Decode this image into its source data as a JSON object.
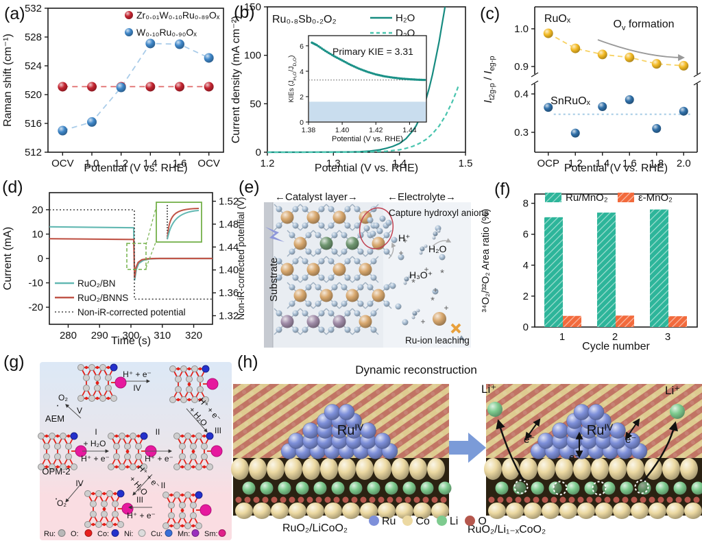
{
  "panels": {
    "a": {
      "tag": "(a)"
    },
    "b": {
      "tag": "(b)"
    },
    "c": {
      "tag": "(c)"
    },
    "d": {
      "tag": "(d)"
    },
    "e": {
      "tag": "(e)",
      "header_left": "←Catalyst layer→",
      "header_right": "←Electrolyte→",
      "substrate": "Substrate",
      "capture": "Capture hydroxyl anions",
      "h_plus": "H⁺",
      "h2o": "H₂O",
      "h3o": "H₃O⁺",
      "ru_leaching": "Ru-ion leaching",
      "colors": {
        "metal": "#d8a86e",
        "oxygen": "#a7bdd3",
        "doped_green": "#6f9670",
        "doped_purple": "#a08ca8",
        "substrate": "#c6cad1",
        "bg": "#e9edf2",
        "ellipse": "#c04050",
        "bolt": "#8a93d8",
        "leach_x": "#e8a03c"
      }
    },
    "f": {
      "tag": "(f)"
    },
    "g": {
      "tag": "(g)",
      "region_top": "AEM",
      "region_bottom": "OPM-2",
      "labels": {
        "hpe": "H⁺ + e⁻",
        "h2o": "+ H₂O",
        "o2": "O₂",
        "s1": "I",
        "s2": "II",
        "s3": "III",
        "s4": "IV",
        "s5": "V"
      },
      "legend": [
        {
          "label": "Ru:",
          "color": "#b8b8b8"
        },
        {
          "label": "O:",
          "color": "#e8201e"
        },
        {
          "label": "Co:",
          "color": "#2431cc"
        },
        {
          "label": "Ni:",
          "color": "#dcdcdc"
        },
        {
          "label": "Cu:",
          "color": "#3a6fd8"
        },
        {
          "label": "Mn:",
          "color": "#9b2fbe"
        },
        {
          "label": "Sm:",
          "color": "#e0218a"
        }
      ],
      "bg_top": "#dce8f6",
      "bg_bottom": "#fadde2"
    },
    "h": {
      "tag": "(h)",
      "title": "Dynamic reconstruction",
      "cluster_base": "Ru",
      "cluster_sup": "IV",
      "li_ion": "Li⁺",
      "electron": "e⁻",
      "left_formula": "RuO₂/LiCoO₂",
      "right_formula": "RuO₂/Li₁₋ₓCoO₂",
      "legend": [
        {
          "label": "Ru",
          "color": "#7e90da"
        },
        {
          "label": "Co",
          "color": "#ecd9a2"
        },
        {
          "label": "Li",
          "color": "#7ecb8f"
        },
        {
          "label": "O",
          "color": "#b5574d"
        }
      ],
      "colors": {
        "surface_yellow": "#decb90",
        "surface_red": "#c17464",
        "cluster_blue": "#7e90da",
        "layer_dark": "#2b2212",
        "co_yellow": "#ecd9a2",
        "li_green": "#7ecb8f",
        "o_red": "#b5574d",
        "arrow_blue": "#7b9bd8"
      }
    }
  },
  "chart_data": [
    {
      "id": "a",
      "type": "scatter",
      "categories": [
        "OCV",
        "1.0",
        "1.2",
        "1.4",
        "1.6",
        "OCV"
      ],
      "xlabel": "Potential (V vs. RHE)",
      "ylabel": "Raman shift (cm⁻¹)",
      "ylim": [
        512,
        532
      ],
      "yticks": [
        512,
        516,
        520,
        524,
        528,
        532
      ],
      "series": [
        {
          "name": "Zr₀.₀₁W₀.₁₀Ru₀.₈₉Oₓ",
          "color": "#c32430",
          "line_color": "#e06a6a",
          "line": "dashed",
          "values": [
            521.1,
            521.1,
            521.1,
            521.1,
            521.1,
            521.1
          ]
        },
        {
          "name": "W₀.₁₀Ru₀.₉₀Oₓ",
          "color": "#3e86c8",
          "line_color": "#a9cce9",
          "line": "dashed",
          "values": [
            515.0,
            516.2,
            521.0,
            527.1,
            527.0,
            525.1
          ]
        }
      ]
    },
    {
      "id": "b",
      "type": "line",
      "title": "Ru₀.₈Sb₀.₂O₂",
      "xlabel": "Potential (V vs. RHE)",
      "ylabel": "Current density (mA cm⁻²)",
      "xlim": [
        1.2,
        1.5
      ],
      "xticks": [
        1.2,
        1.3,
        1.4,
        1.5
      ],
      "ylim": [
        0,
        150
      ],
      "yticks": [
        0,
        50,
        100,
        150
      ],
      "series": [
        {
          "name": "H₂O",
          "color": "#168b80",
          "style": "solid",
          "points": [
            [
              1.2,
              0
            ],
            [
              1.25,
              0
            ],
            [
              1.3,
              0.2
            ],
            [
              1.32,
              0.3
            ],
            [
              1.34,
              0.6
            ],
            [
              1.355,
              1.2
            ],
            [
              1.37,
              2.5
            ],
            [
              1.38,
              4
            ],
            [
              1.39,
              6
            ],
            [
              1.4,
              9
            ],
            [
              1.41,
              14
            ],
            [
              1.42,
              22
            ],
            [
              1.425,
              27
            ],
            [
              1.43,
              34
            ],
            [
              1.435,
              43
            ],
            [
              1.44,
              54
            ],
            [
              1.445,
              66
            ],
            [
              1.45,
              80
            ],
            [
              1.455,
              97
            ],
            [
              1.46,
              114
            ],
            [
              1.464,
              130
            ],
            [
              1.468,
              146
            ],
            [
              1.469,
              150
            ]
          ]
        },
        {
          "name": "D₂O",
          "color": "#48c4ae",
          "style": "dashed",
          "points": [
            [
              1.2,
              0
            ],
            [
              1.3,
              0
            ],
            [
              1.34,
              0.2
            ],
            [
              1.36,
              0.5
            ],
            [
              1.38,
              1
            ],
            [
              1.4,
              2.5
            ],
            [
              1.41,
              4
            ],
            [
              1.42,
              6
            ],
            [
              1.43,
              9
            ],
            [
              1.44,
              13
            ],
            [
              1.45,
              19
            ],
            [
              1.46,
              27
            ],
            [
              1.47,
              38
            ],
            [
              1.48,
              52
            ],
            [
              1.487,
              64
            ],
            [
              1.49,
              70
            ]
          ]
        }
      ],
      "inset": {
        "annotation": "Primary KIE = 3.31",
        "xlabel": "Potential (V vs. RHE)",
        "ylabel_parts": [
          {
            "t": "KIEs (J"
          },
          {
            "t": "H₂O",
            "sub": true
          },
          {
            "t": "/J"
          },
          {
            "t": "D₂O",
            "sub": true
          },
          {
            "t": ")"
          }
        ],
        "xlim": [
          1.38,
          1.45
        ],
        "xticks": [
          1.38,
          1.4,
          1.42,
          1.44
        ],
        "ylim": [
          0,
          6.8
        ],
        "yticks": [
          0,
          2,
          4,
          6
        ],
        "hline": 3.31,
        "band": [
          0,
          1.6
        ],
        "band_color": "#c9ddee",
        "curve_color": "#1b9187",
        "points": [
          [
            1.382,
            6.25
          ],
          [
            1.385,
            6.05
          ],
          [
            1.39,
            5.6
          ],
          [
            1.395,
            5.2
          ],
          [
            1.4,
            4.85
          ],
          [
            1.405,
            4.5
          ],
          [
            1.41,
            4.2
          ],
          [
            1.415,
            3.95
          ],
          [
            1.42,
            3.75
          ],
          [
            1.425,
            3.6
          ],
          [
            1.43,
            3.5
          ],
          [
            1.435,
            3.42
          ],
          [
            1.44,
            3.37
          ],
          [
            1.445,
            3.33
          ],
          [
            1.45,
            3.31
          ]
        ]
      }
    },
    {
      "id": "c",
      "type": "scatter-broken-axis",
      "categories": [
        "OCP",
        "1.2",
        "1.4",
        "1.6",
        "1.8",
        "2.0"
      ],
      "xlabel": "Potential (V vs. RHE)",
      "ylabel_parts": [
        {
          "t": "I",
          "i": true
        },
        {
          "t": "t2g-p",
          "sub": true
        },
        {
          "t": " / "
        },
        {
          "t": "I",
          "i": true
        },
        {
          "t": "eg-p",
          "sub": true
        }
      ],
      "annotation_parts": [
        {
          "t": "O"
        },
        {
          "t": "v",
          "sub": true
        },
        {
          "t": " formation"
        }
      ],
      "upper": {
        "yticks": [
          0.9,
          1.0
        ],
        "series": {
          "name": "RuOₓ",
          "color": "#f3ba24",
          "trend_color": "#f7d264",
          "values": [
            0.988,
            0.948,
            0.932,
            0.924,
            0.907,
            0.902
          ]
        }
      },
      "lower": {
        "yticks": [
          0.3,
          0.4
        ],
        "series": {
          "name": "SnRuOₓ",
          "color": "#2f6fa8",
          "hline": 0.347,
          "hline_color": "#a9cde6",
          "values": [
            0.365,
            0.298,
            0.367,
            0.385,
            0.31,
            0.355
          ]
        }
      }
    },
    {
      "id": "d",
      "type": "dual-axis-line",
      "xlabel": "Time (s)",
      "xlim": [
        274,
        326
      ],
      "xticks": [
        280,
        290,
        300,
        310,
        320
      ],
      "left_axis": {
        "label": "Current (mA)",
        "ylim": [
          -27,
          27
        ],
        "yticks": [
          -20,
          -10,
          0,
          10,
          20
        ]
      },
      "right_axis": {
        "label": "Non-iR-corrected potential (V)",
        "ylim": [
          1.305,
          1.535
        ],
        "yticks": [
          1.32,
          1.36,
          1.4,
          1.44,
          1.48,
          1.52
        ]
      },
      "series": [
        {
          "name": "RuO₂/BN",
          "color": "#62b8b2",
          "axis": "left",
          "style": "solid",
          "points": [
            [
              274,
              13
            ],
            [
              300.9,
              12.6
            ],
            [
              301.15,
              -9
            ],
            [
              301.7,
              -4.5
            ],
            [
              302.5,
              -2
            ],
            [
              304,
              -0.7
            ],
            [
              306,
              -0.2
            ],
            [
              309,
              0
            ],
            [
              326,
              0
            ]
          ]
        },
        {
          "name": "RuO₂/BNNS",
          "color": "#c05548",
          "axis": "left",
          "style": "solid",
          "points": [
            [
              274,
              8.1
            ],
            [
              300.9,
              7.8
            ],
            [
              301.15,
              -8
            ],
            [
              301.6,
              -3.8
            ],
            [
              302.3,
              -1.6
            ],
            [
              303.5,
              -0.5
            ],
            [
              305.5,
              -0.1
            ],
            [
              308,
              0
            ],
            [
              326,
              0
            ]
          ]
        },
        {
          "name": "Non-iR-corrected potential",
          "color": "#444",
          "axis": "right",
          "style": "dotted",
          "points": [
            [
              274,
              1.505
            ],
            [
              301.1,
              1.505
            ],
            [
              301.1,
              1.349
            ],
            [
              326,
              1.349
            ]
          ]
        }
      ],
      "inset_box_color": "#74b04a"
    },
    {
      "id": "f",
      "type": "bar",
      "categories": [
        "1",
        "2",
        "3"
      ],
      "xlabel": "Cycle number",
      "ylabel": "³⁴O₂/³²O₂ Area ratio (%)",
      "ylim": [
        0,
        8.6
      ],
      "yticks": [
        0,
        2,
        4,
        6,
        8
      ],
      "series": [
        {
          "name": "Ru/MnO₂",
          "color": "#2db59a",
          "values": [
            7.1,
            7.4,
            7.6
          ]
        },
        {
          "name": "ε-MnO₂",
          "color": "#f26a3c",
          "values": [
            0.72,
            0.74,
            0.7
          ]
        }
      ]
    }
  ]
}
